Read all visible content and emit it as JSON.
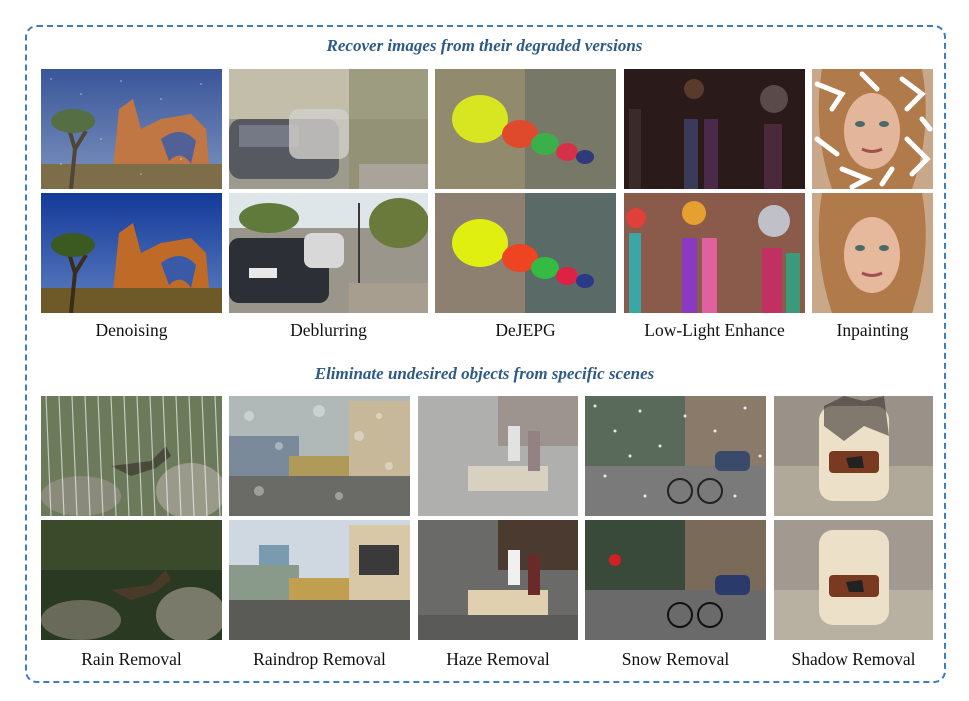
{
  "section1": {
    "title": "Recover images from their degraded versions",
    "tasks": [
      "Denoising",
      "Deblurring",
      "DeJEPG",
      "Low-Light Enhance",
      "Inpainting"
    ]
  },
  "section2": {
    "title": "Eliminate undesired objects from specific scenes",
    "tasks": [
      "Rain Removal",
      "Raindrop Removal",
      "Haze Removal",
      "Snow Removal",
      "Shadow Removal"
    ]
  },
  "image_descriptions": {
    "denoising": "desert arch rock formation with a tree under a blue sky",
    "deblurring": "street with parked cars along a sidewalk",
    "dejpeg": "colorful baseball caps lined up on a wall",
    "lowlight": "colorful hanging tassel ornaments",
    "inpainting": "portrait of a blonde woman",
    "rain": "roadrunner bird on rocks in grass",
    "raindrop": "modern buildings beside a road",
    "haze": "street food stall with people",
    "snow": "cyclists on a city street",
    "shadow": "cream backpack on stone steps"
  }
}
